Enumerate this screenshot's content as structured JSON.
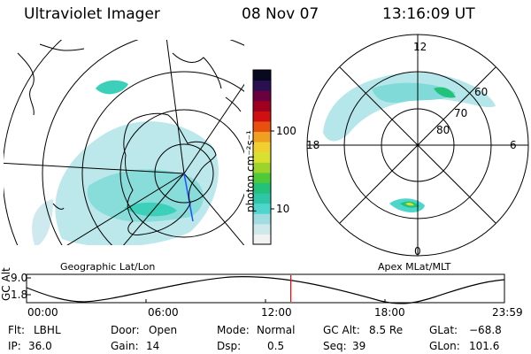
{
  "header": {
    "instrument": "Ultraviolet Imager",
    "date": "08 Nov 07",
    "time": "13:16:09 UT"
  },
  "left_panel": {
    "caption": "Geographic Lat/Lon"
  },
  "right_panel": {
    "caption": "Apex MLat/MLT",
    "mlt_labels": {
      "top": "12",
      "left": "18",
      "right": "6",
      "bottom": "0"
    },
    "lat_labels": [
      "60",
      "70",
      "80"
    ]
  },
  "colorbar": {
    "unit_label": "photon cm⁻²s⁻¹",
    "ticks": [
      "100",
      "10"
    ],
    "scale": "log",
    "colors": [
      "#f2f2f2",
      "#cfe8ec",
      "#9fdde0",
      "#4fd6cc",
      "#2fc6a8",
      "#22c27a",
      "#4ec93a",
      "#9ed32a",
      "#d8e030",
      "#f0d030",
      "#f0a020",
      "#e85010",
      "#d01010",
      "#a00020",
      "#6a0040",
      "#2a1050",
      "#080820"
    ]
  },
  "altitude_plot": {
    "ylabel": "GC Alt",
    "yticks": [
      "9.0",
      "1.8"
    ],
    "xticks": [
      "00:00",
      "06:00",
      "12:00",
      "18:00",
      "23:59"
    ],
    "marker_hour": 13.27,
    "marker_color": "#ff0000"
  },
  "info": {
    "flt_label": "Flt:",
    "flt_value": "LBHL",
    "ip_label": "IP:",
    "ip_value": "36.0",
    "door_label": "Door:",
    "door_value": "Open",
    "gain_label": "Gain:",
    "gain_value": "14",
    "mode_label": "Mode:",
    "mode_value": "Normal",
    "dsp_label": "Dsp:",
    "dsp_value": "0.5",
    "gcalt_label": "GC Alt:",
    "gcalt_value": "8.5 Re",
    "seq_label": "Seq:",
    "seq_value": "39",
    "glat_label": "GLat:",
    "glat_value": "−68.8",
    "glon_label": "GLon:",
    "glon_value": "101.6"
  },
  "colors": {
    "aurora_low": "#9fdde0",
    "aurora_mid": "#4fd6cc",
    "aurora_high": "#22c27a",
    "aurora_peak": "#d8e030"
  }
}
